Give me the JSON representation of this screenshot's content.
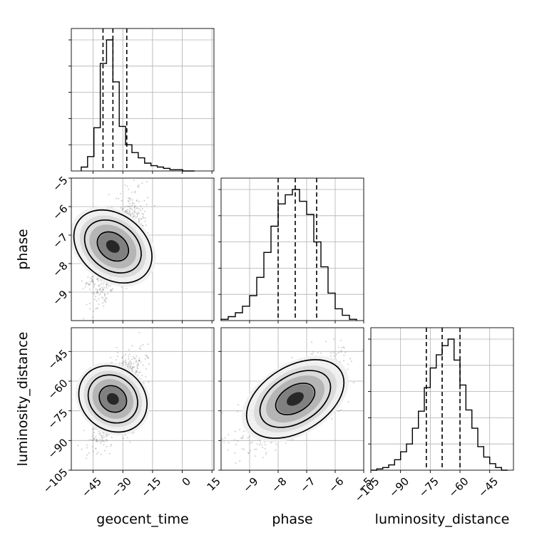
{
  "chart_data": {
    "type": "corner",
    "title": "",
    "variables": [
      {
        "name": "geocent_time",
        "range": [
          -56,
          16
        ],
        "ticks": [
          -45,
          -30,
          -15,
          0,
          15
        ],
        "tick_labels": [
          "−45",
          "−30",
          "−15",
          "0",
          "15"
        ],
        "median": -35,
        "q16": -40,
        "q84": -28
      },
      {
        "name": "phase",
        "range": [
          -10,
          -5
        ],
        "ticks": [
          -9,
          -8,
          -7,
          -6,
          -5
        ],
        "tick_labels": [
          "−9",
          "−8",
          "−7",
          "−6",
          "−5"
        ],
        "median": -7.4,
        "q16": -8.0,
        "q84": -6.65
      },
      {
        "name": "luminosity_distance",
        "range": [
          -105,
          -33
        ],
        "ticks": [
          -105,
          -90,
          -75,
          -60,
          -45
        ],
        "tick_labels": [
          "−105",
          "−90",
          "−75",
          "−60",
          "−45"
        ],
        "median": -69,
        "q16": -77,
        "q84": -60
      }
    ],
    "histograms": [
      {
        "variable": "geocent_time",
        "bin_edges": [
          -51,
          -47.8,
          -44.6,
          -41.4,
          -38.2,
          -35,
          -31.8,
          -28.6,
          -25.4,
          -22.2,
          -19,
          -15.8,
          -12.6,
          -9.4,
          -6.2,
          -3,
          0.2,
          3.4,
          6.2
        ],
        "counts": [
          3,
          11,
          33,
          82,
          100,
          68,
          34,
          20,
          14,
          10,
          6,
          4,
          3,
          2,
          1,
          1,
          0,
          0
        ]
      },
      {
        "variable": "phase",
        "bin_edges": [
          -10,
          -9.75,
          -9.5,
          -9.25,
          -9,
          -8.75,
          -8.5,
          -8.25,
          -8,
          -7.75,
          -7.5,
          -7.25,
          -7,
          -6.75,
          -6.5,
          -6.25,
          -6,
          -5.75,
          -5.5,
          -5.25
        ],
        "counts": [
          1,
          3,
          6,
          11,
          19,
          33,
          52,
          72,
          89,
          96,
          100,
          91,
          81,
          60,
          41,
          21,
          9,
          4,
          1
        ]
      },
      {
        "variable": "luminosity_distance",
        "bin_edges": [
          -105,
          -102,
          -99,
          -96,
          -93,
          -90,
          -87,
          -84,
          -81,
          -78,
          -75,
          -72,
          -69,
          -66,
          -63,
          -60,
          -57,
          -54,
          -51,
          -48,
          -45,
          -42,
          -39,
          -36
        ],
        "counts": [
          0,
          1,
          2,
          4,
          8,
          14,
          20,
          32,
          45,
          63,
          78,
          88,
          95,
          100,
          84,
          65,
          46,
          32,
          18,
          10,
          5,
          2,
          0
        ]
      }
    ],
    "joint": [
      {
        "x": "geocent_time",
        "y": "phase",
        "center": [
          -35,
          -7.4
        ],
        "sd": [
          5,
          0.8
        ],
        "corr": 0.55
      },
      {
        "x": "geocent_time",
        "y": "luminosity_distance",
        "center": [
          -35,
          -69
        ],
        "sd": [
          5,
          10
        ],
        "corr": 0.6
      },
      {
        "x": "phase",
        "y": "luminosity_distance",
        "center": [
          -7.4,
          -69
        ],
        "sd": [
          0.8,
          10
        ],
        "corr": 0.7
      }
    ],
    "grid": true,
    "legend": "none"
  }
}
